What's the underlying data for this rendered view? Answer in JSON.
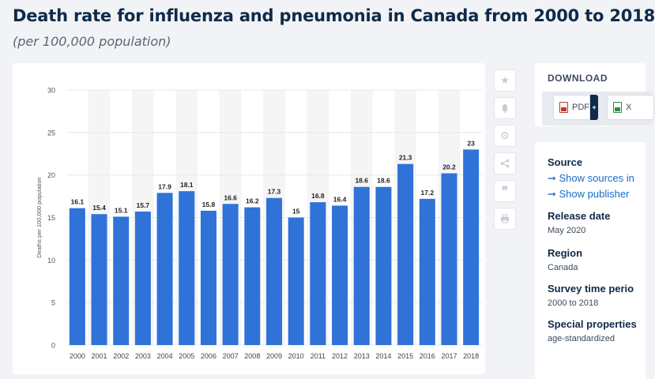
{
  "page": {
    "title": "Death rate for influenza and pneumonia in Canada from 2000 to 2018",
    "subtitle": "(per 100,000 population)"
  },
  "toolbar": {
    "icons": [
      "star-icon",
      "bell-icon",
      "gear-icon",
      "share-icon",
      "quote-icon",
      "print-icon"
    ]
  },
  "download": {
    "title": "DOWNLOAD",
    "pdf_label": "PDF",
    "xls_label": "X",
    "plus_label": "+"
  },
  "details": {
    "source_label": "Source",
    "show_sources_link": "➞ Show sources in",
    "show_publisher_link": "➞ Show publisher",
    "release_date_label": "Release date",
    "release_date_value": "May 2020",
    "region_label": "Region",
    "region_value": "Canada",
    "survey_period_label": "Survey time perio",
    "survey_period_value": "2000 to 2018",
    "special_properties_label": "Special properties",
    "special_properties_value": "age-standardized"
  },
  "colors": {
    "bar": "#2f72d8",
    "band": "#f5f5f5",
    "grid": "#e6e8ec",
    "title": "#0f2a4a"
  },
  "chart_data": {
    "type": "bar",
    "categories": [
      "2000",
      "2001",
      "2002",
      "2003",
      "2004",
      "2005",
      "2006",
      "2007",
      "2008",
      "2009",
      "2010",
      "2011",
      "2012",
      "2013",
      "2014",
      "2015",
      "2016",
      "2017",
      "2018"
    ],
    "values": [
      16.1,
      15.4,
      15.1,
      15.7,
      17.9,
      18.1,
      15.8,
      16.6,
      16.2,
      17.3,
      15,
      16.8,
      16.4,
      18.6,
      18.6,
      21.3,
      17.2,
      20.2,
      23
    ],
    "value_labels": [
      "16.1",
      "15.4",
      "15.1",
      "15.7",
      "17.9",
      "18.1",
      "15.8",
      "16.6",
      "16.2",
      "17.3",
      "15",
      "16.8",
      "16.4",
      "18.6",
      "18.6",
      "21.3",
      "17.2",
      "20.2",
      "23"
    ],
    "ylabel": "Deaths per 100,000 population",
    "ylim": [
      0,
      30
    ],
    "yticks": [
      0,
      5,
      10,
      15,
      20,
      25,
      30
    ],
    "ytick_labels": [
      "0",
      "5",
      "10",
      "15",
      "20",
      "25",
      "30"
    ],
    "grid": true
  }
}
